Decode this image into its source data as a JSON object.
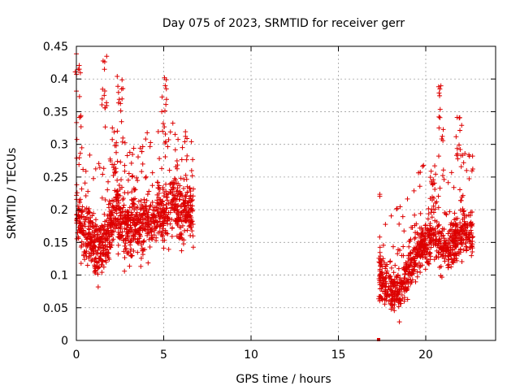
{
  "chart_data": {
    "type": "scatter",
    "title": "Day 075 of 2023, SRMTID for receiver gerr",
    "xlabel": "GPS time / hours",
    "ylabel": "SRMTID / TECUs",
    "xlim": [
      0,
      24
    ],
    "ylim": [
      0,
      0.45
    ],
    "xticks": [
      0,
      5,
      10,
      15,
      20
    ],
    "xtick_labels": [
      "0",
      "5",
      "10",
      "15",
      "20"
    ],
    "yticks": [
      0,
      0.05,
      0.1,
      0.15,
      0.2,
      0.25,
      0.3,
      0.35,
      0.4,
      0.45
    ],
    "ytick_labels": [
      "0",
      "0.05",
      "0.1",
      "0.15",
      "0.2",
      "0.25",
      "0.3",
      "0.35",
      "0.4",
      "0.45"
    ],
    "grid": true,
    "marker": "+",
    "color": "#dd0000",
    "series": [
      {
        "name": "SRMTID",
        "segments": [
          {
            "x_start": 0.0,
            "x_end": 6.7,
            "base": [
              0.2,
              0.17,
              0.16,
              0.15,
              0.14,
              0.16,
              0.18,
              0.2,
              0.18,
              0.17,
              0.18,
              0.17,
              0.19,
              0.18,
              0.2,
              0.19,
              0.2,
              0.21,
              0.19,
              0.2,
              0.2
            ],
            "spread": 0.045,
            "count": 1150,
            "spikes": [
              {
                "x": 0.1,
                "y_min": 0.3,
                "y_max": 0.44
              },
              {
                "x": 1.6,
                "y_min": 0.32,
                "y_max": 0.445
              },
              {
                "x": 2.5,
                "y_min": 0.3,
                "y_max": 0.41
              },
              {
                "x": 5.0,
                "y_min": 0.3,
                "y_max": 0.41
              },
              {
                "x": 2.2,
                "y_min": 0.25,
                "y_max": 0.33
              }
            ]
          },
          {
            "x_start": 17.3,
            "x_end": 22.7,
            "base": [
              0.1,
              0.09,
              0.08,
              0.07,
              0.1,
              0.12,
              0.14,
              0.15,
              0.16,
              0.15,
              0.14,
              0.15,
              0.16,
              0.17,
              0.16
            ],
            "spread": 0.035,
            "count": 850,
            "spikes": [
              {
                "x": 20.9,
                "y_min": 0.28,
                "y_max": 0.39
              },
              {
                "x": 21.9,
                "y_min": 0.26,
                "y_max": 0.35
              },
              {
                "x": 20.4,
                "y_min": 0.2,
                "y_max": 0.27
              }
            ]
          }
        ],
        "isolated_points": [
          {
            "x": 17.3,
            "y": 0.0
          }
        ]
      }
    ]
  }
}
